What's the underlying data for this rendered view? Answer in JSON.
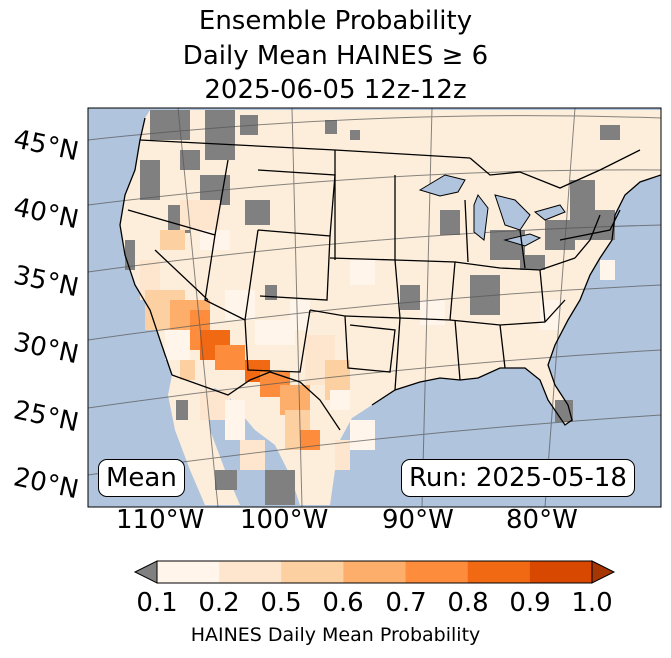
{
  "title": {
    "line1": "Ensemble Probability",
    "line2": "Daily Mean HAINES ≥ 6",
    "line3": "2025-06-05 12z-12z"
  },
  "map": {
    "lat_labels": [
      "45°N",
      "40°N",
      "35°N",
      "30°N",
      "25°N",
      "20°N"
    ],
    "lon_labels": [
      "110°W",
      "100°W",
      "90°W",
      "80°W"
    ],
    "stat_label": "Mean",
    "run_label": "Run: 2025-05-18",
    "colors": {
      "ocean": "#b0c4de",
      "land_base": "#fdeedb",
      "missing": "#808080"
    }
  },
  "colorbar": {
    "ticks": [
      "0.1",
      "0.2",
      "0.5",
      "0.6",
      "0.7",
      "0.8",
      "0.9",
      "1.0"
    ],
    "label": "HAINES Daily Mean Probability",
    "under_color": "#808080",
    "colors": [
      "#fff5eb",
      "#fee6ce",
      "#fdd0a2",
      "#fdae6b",
      "#fd8d3c",
      "#f16913",
      "#d94801",
      "#a63603"
    ]
  }
}
